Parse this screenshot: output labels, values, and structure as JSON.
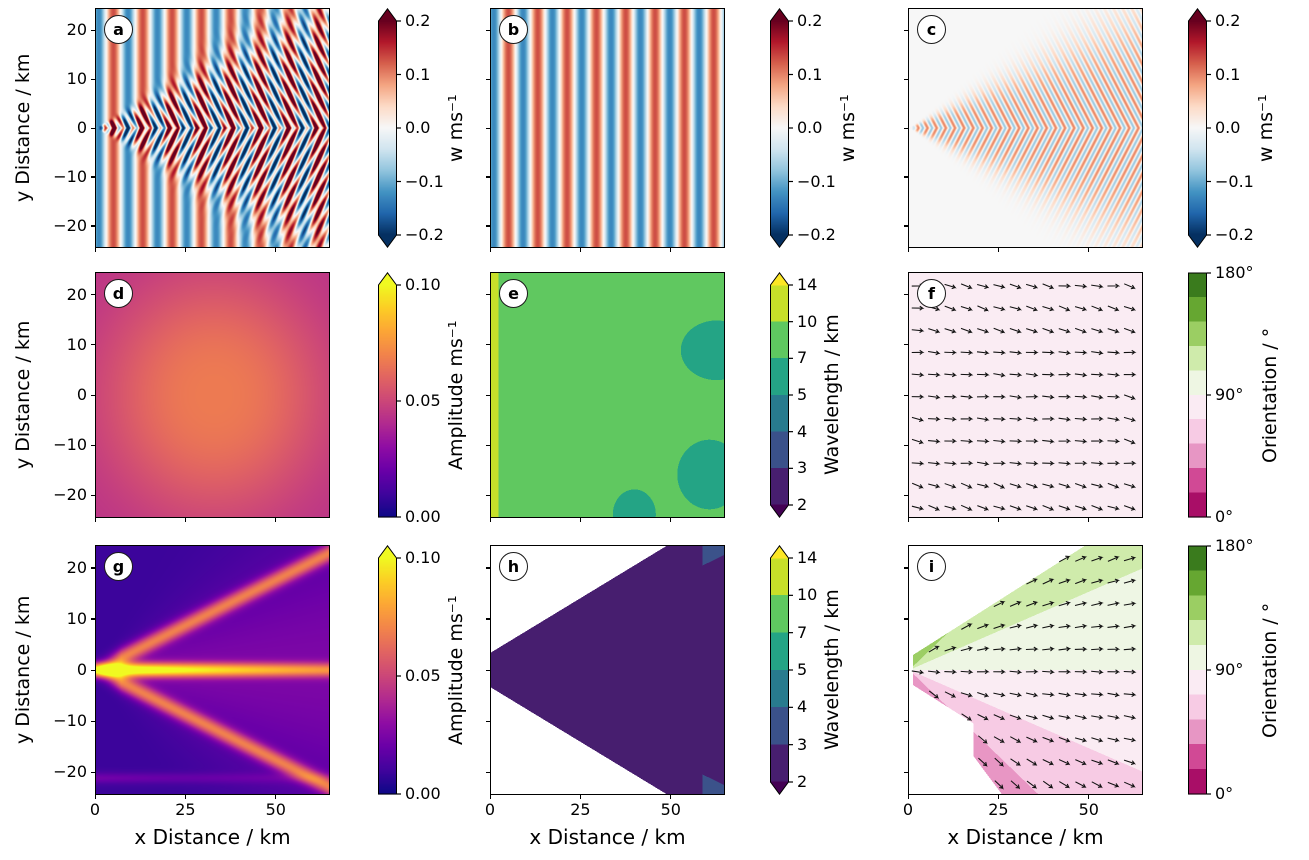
{
  "figure": {
    "background": "#ffffff"
  },
  "axes": {
    "xlabel": "x Distance / km",
    "ylabel": "y Distance / km",
    "xlim": [
      0,
      65
    ],
    "ylim": [
      -24.5,
      24.5
    ],
    "x_tick_values": [
      0,
      25,
      50
    ],
    "x_tick_labels": [
      "0",
      "25",
      "50"
    ],
    "y_tick_values": [
      20,
      10,
      0,
      -10,
      -20
    ],
    "y_tick_labels": [
      "20",
      "10",
      "0",
      "−10",
      "−20"
    ]
  },
  "panels": [
    {
      "letter": "a",
      "field": "w_total",
      "colorbar": "w"
    },
    {
      "letter": "b",
      "field": "w_background",
      "colorbar": "w"
    },
    {
      "letter": "c",
      "field": "w_scattered",
      "colorbar": "w"
    },
    {
      "letter": "d",
      "field": "amplitude_full",
      "colorbar": "amp"
    },
    {
      "letter": "e",
      "field": "wavelength_full",
      "colorbar": "wav"
    },
    {
      "letter": "f",
      "field": "orientation_full",
      "colorbar": "ori"
    },
    {
      "letter": "g",
      "field": "amplitude_wake",
      "colorbar": "amp"
    },
    {
      "letter": "h",
      "field": "wavelength_wake",
      "colorbar": "wav"
    },
    {
      "letter": "i",
      "field": "orientation_wake",
      "colorbar": "ori"
    }
  ],
  "colorbars": {
    "w": {
      "label": "w ms⁻¹",
      "tick_labels": [
        "0.2",
        "0.1",
        "0.0",
        "−0.1",
        "−0.2"
      ],
      "tick_values": [
        0.2,
        0.1,
        0.0,
        -0.1,
        -0.2
      ],
      "range": [
        -0.2,
        0.2
      ],
      "colormap": "RdBu_r",
      "extend": "both",
      "min_color": "#053061",
      "max_color": "#67001f"
    },
    "amp": {
      "label": "Amplitude ms⁻¹",
      "tick_labels": [
        "0.10",
        "0.05",
        "0.00"
      ],
      "tick_values": [
        0.1,
        0.05,
        0.0
      ],
      "range": [
        0,
        0.1
      ],
      "colormap": "plasma",
      "extend": "max",
      "min_color": "#0d0887",
      "max_color": "#f0f921"
    },
    "wav": {
      "label": "Wavelength / km",
      "tick_labels": [
        "14",
        "10",
        "7",
        "5",
        "4",
        "3",
        "2"
      ],
      "tick_values": [
        14,
        10,
        7,
        5,
        4,
        3,
        2
      ],
      "boundaries": [
        2,
        3,
        4,
        5,
        7,
        10,
        14
      ],
      "colormap": "viridis",
      "extend": "both",
      "min_color": "#440154",
      "max_color": "#fde725"
    },
    "ori": {
      "label": "Orientation / °",
      "tick_labels": [
        "180°",
        "90°",
        "0°"
      ],
      "tick_values": [
        180,
        90,
        0
      ],
      "range": [
        0,
        180
      ],
      "colormap": "PiYG",
      "extend": "none",
      "min_color": "#8e0152",
      "max_color": "#276419"
    }
  },
  "chart_data": {
    "type": "heatmap",
    "layout": "3x3 panel grid, each panel with its own colorbar",
    "x_axis": {
      "label": "x Distance / km",
      "range": [
        0,
        65
      ],
      "ticks": [
        0,
        25,
        50
      ]
    },
    "y_axis": {
      "label": "y Distance / km",
      "range": [
        -24.5,
        24.5
      ],
      "ticks": [
        20,
        10,
        0,
        -10,
        -20
      ]
    },
    "panels": [
      {
        "panel": "a",
        "quantity": "w (vertical velocity)",
        "units": "m s⁻¹",
        "colormap": "RdBu_r",
        "value_range": [
          -0.2,
          0.2
        ],
        "colorbar_ticks": [
          0.2,
          0.1,
          0.0,
          -0.1,
          -0.2
        ],
        "extend": "both",
        "description": "Total wave field: vertical plane-wave stripes of wavelength ≈ 8 km plus a scattered fan of curved wave crests spreading from a point source at (0, 0); values saturate beyond ±0.2 inside the fan.",
        "plane_wave_wavelength_km": 8.2,
        "fan_half_angle_deg": 22
      },
      {
        "panel": "b",
        "quantity": "w background plane wave",
        "units": "m s⁻¹",
        "colormap": "RdBu_r",
        "value_range": [
          -0.2,
          0.2
        ],
        "colorbar_ticks": [
          0.2,
          0.1,
          0.0,
          -0.1,
          -0.2
        ],
        "extend": "both",
        "description": "Uniform vertical red/blue stripes: plane wave travelling in x with wavelength ≈ 8 km and amplitude ≈ 0.12 m s⁻¹.",
        "plane_wave_wavelength_km": 8.2,
        "amplitude_ms": 0.12
      },
      {
        "panel": "c",
        "quantity": "w scattered wave",
        "units": "m s⁻¹",
        "colormap": "RdBu_r",
        "value_range": [
          -0.2,
          0.2
        ],
        "colorbar_ticks": [
          0.2,
          0.1,
          0.0,
          -0.1,
          -0.2
        ],
        "extend": "both",
        "description": "Scattered field only: near-white background with a triangular fan (half-angle ≈ 20°) of fine chevron-shaped crests, wavelength ≈ 2 km, amplitude ≈ ±0.08 m s⁻¹.",
        "fan_half_angle_deg": 20,
        "chevron_wavelength_km": 2.1
      },
      {
        "panel": "d",
        "quantity": "Amplitude",
        "units": "m s⁻¹",
        "colormap": "plasma",
        "value_range": [
          0,
          0.1
        ],
        "colorbar_ticks": [
          0.1,
          0.05,
          0.0
        ],
        "extend": "max",
        "description": "Smooth amplitude envelope of the full field: ≈ 0.065 m s⁻¹ (orange) in a broad central blob, falling to ≈ 0.045 m s⁻¹ (magenta/purple) at the corners.",
        "center_value_ms": 0.065,
        "corner_value_ms": 0.045
      },
      {
        "panel": "e",
        "quantity": "Wavelength",
        "units": "km",
        "colormap": "viridis",
        "levels": [
          2,
          3,
          4,
          5,
          7,
          10,
          14
        ],
        "colorbar_ticks": [
          14,
          10,
          7,
          5,
          4,
          3,
          2
        ],
        "extend": "both",
        "description": "Nearly uniform wavelength ≈ 8–9 km (green, 7–10 km band); ≈ 11 km (yellow-green) sliver on left edge and a few ≈ 6–7 km (teal) patches near the right edge.",
        "dominant_wavelength_km": 8.6
      },
      {
        "panel": "f",
        "quantity": "Orientation",
        "units": "°",
        "colormap": "PiYG",
        "value_range": [
          0,
          180
        ],
        "colorbar_ticks": [
          180,
          90,
          0
        ],
        "extend": "none",
        "description": "Orientation ≈ 90° (white) over most of the domain with ≈ 75° (light pink) bands along the top and bottom and at mid-right; black quiver arrows show the local phase direction, mostly horizontal.",
        "background_orientation_deg": 89,
        "patch_orientation_deg": 75
      },
      {
        "panel": "g",
        "quantity": "Amplitude",
        "units": "m s⁻¹",
        "colormap": "plasma",
        "value_range": [
          0,
          0.1
        ],
        "colorbar_ticks": [
          0.1,
          0.05,
          0.0
        ],
        "extend": "max",
        "description": "Wake amplitude: dark purple background (≈ 0.01) with a bright yellow-orange ray along y = 0 peaking ≈ 0.10 at the source and two orange rays at ≈ ±19°; faint streak near y ≈ −21 km.",
        "ray_angles_deg": [
          0,
          19,
          -19
        ],
        "peak_value_ms": 0.1,
        "background_value_ms": 0.01
      },
      {
        "panel": "h",
        "quantity": "Wavelength",
        "units": "km",
        "colormap": "viridis",
        "levels": [
          2,
          3,
          4,
          5,
          7,
          10,
          14
        ],
        "colorbar_ticks": [
          14,
          10,
          7,
          5,
          4,
          3,
          2
        ],
        "extend": "both",
        "description": "Wake wavelength ≈ 2–3 km (dark purple, 2–3 km band) inside a wedge |y| ≲ 0.43x + 3.5 opening to the right; masked (white) outside the wedge.",
        "wedge_wavelength_km": 2.4
      },
      {
        "panel": "i",
        "quantity": "Orientation",
        "units": "°",
        "colormap": "PiYG",
        "value_range": [
          0,
          180
        ],
        "colorbar_ticks": [
          180,
          90,
          0
        ],
        "extend": "none",
        "description": "Wake orientation inside the wedge: ≈ 105–115° (light green) on the upper flank, 90° (white) along the axis, ≈ 70° (pink) on the lower flank and ≈ 55° (darker pink) toward the bottom-right; quiver arrows follow the flanks; masked (white) elsewhere.",
        "upper_flank_deg": 108,
        "axis_deg": 90,
        "lower_flank_deg": 70
      }
    ]
  }
}
